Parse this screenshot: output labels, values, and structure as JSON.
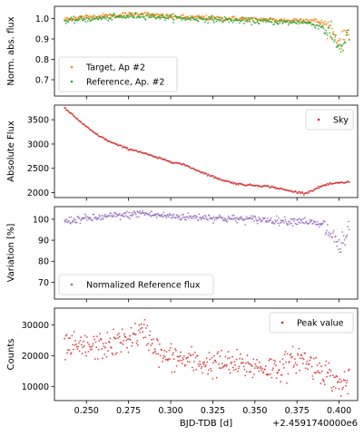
{
  "chart_data": [
    {
      "type": "scatter",
      "ylabel": "Norm. abs. flux",
      "ylim": [
        0.62,
        1.06
      ],
      "yticks": [
        0.7,
        0.8,
        0.9,
        1.0
      ],
      "ytick_labels": [
        "0.7",
        "0.8",
        "0.9",
        "1.0"
      ],
      "xlim": [
        0.231,
        0.411
      ],
      "legend_loc": "lower-left",
      "series": [
        {
          "name": "Target, Ap #2",
          "color": "#ff7f0e",
          "x": [
            0.237,
            0.245,
            0.255,
            0.265,
            0.275,
            0.283,
            0.29,
            0.3,
            0.31,
            0.32,
            0.33,
            0.34,
            0.35,
            0.36,
            0.37,
            0.378,
            0.385,
            0.39,
            0.394,
            0.398,
            0.401,
            0.404,
            0.406
          ],
          "y": [
            0.995,
            1.005,
            1.01,
            1.015,
            1.02,
            1.025,
            1.015,
            1.01,
            1.005,
            1.005,
            1.0,
            1.0,
            0.995,
            0.995,
            0.99,
            0.995,
            0.99,
            0.98,
            0.96,
            0.91,
            0.88,
            0.93,
            0.94
          ]
        },
        {
          "name": "Reference, Ap. #2",
          "color": "#2ca02c",
          "x": [
            0.237,
            0.245,
            0.255,
            0.265,
            0.275,
            0.283,
            0.29,
            0.3,
            0.31,
            0.32,
            0.33,
            0.34,
            0.35,
            0.36,
            0.37,
            0.378,
            0.385,
            0.39,
            0.394,
            0.398,
            0.401,
            0.404,
            0.406
          ],
          "y": [
            0.985,
            0.995,
            1.0,
            1.005,
            1.01,
            1.015,
            1.01,
            1.005,
            1.0,
            0.998,
            0.995,
            0.99,
            0.988,
            0.985,
            0.98,
            0.985,
            0.97,
            0.96,
            0.93,
            0.89,
            0.85,
            0.9,
            0.93
          ]
        }
      ]
    },
    {
      "type": "scatter",
      "ylabel": "Absolute Flux",
      "ylim": [
        1900,
        3800
      ],
      "yticks": [
        2000,
        2500,
        3000,
        3500
      ],
      "ytick_labels": [
        "2000",
        "2500",
        "3000",
        "3500"
      ],
      "xlim": [
        0.231,
        0.411
      ],
      "legend_loc": "upper-right",
      "series": [
        {
          "name": "Sky",
          "color": "#d62728",
          "x": [
            0.237,
            0.24,
            0.245,
            0.25,
            0.255,
            0.26,
            0.265,
            0.27,
            0.275,
            0.28,
            0.285,
            0.29,
            0.295,
            0.3,
            0.305,
            0.31,
            0.315,
            0.32,
            0.325,
            0.33,
            0.335,
            0.34,
            0.345,
            0.35,
            0.355,
            0.36,
            0.365,
            0.37,
            0.375,
            0.38,
            0.385,
            0.39,
            0.395,
            0.4,
            0.406
          ],
          "y": [
            3740,
            3650,
            3500,
            3350,
            3220,
            3120,
            3030,
            2960,
            2900,
            2860,
            2800,
            2740,
            2690,
            2640,
            2600,
            2550,
            2470,
            2400,
            2330,
            2270,
            2220,
            2180,
            2160,
            2150,
            2140,
            2120,
            2080,
            2040,
            2010,
            1990,
            2060,
            2140,
            2180,
            2200,
            2220
          ]
        }
      ]
    },
    {
      "type": "scatter",
      "ylabel": "Variation [%]",
      "ylim": [
        62,
        106
      ],
      "yticks": [
        70,
        80,
        90,
        100
      ],
      "ytick_labels": [
        "70",
        "80",
        "90",
        "100"
      ],
      "xlim": [
        0.231,
        0.411
      ],
      "legend_loc": "lower-left",
      "series": [
        {
          "name": "Normalized Reference flux",
          "color": "#9467bd",
          "x": [
            0.237,
            0.245,
            0.255,
            0.265,
            0.275,
            0.283,
            0.29,
            0.3,
            0.31,
            0.32,
            0.33,
            0.34,
            0.35,
            0.36,
            0.37,
            0.378,
            0.385,
            0.39,
            0.394,
            0.398,
            0.401,
            0.404,
            0.406
          ],
          "y": [
            99,
            100,
            100.5,
            101.5,
            102,
            103,
            102,
            101.5,
            101,
            101,
            100.5,
            100,
            100,
            99.5,
            99,
            99.5,
            98,
            97,
            94,
            90,
            86,
            91,
            94
          ]
        }
      ]
    },
    {
      "type": "scatter",
      "ylabel": "Counts",
      "xlabel": "BJD-TDB [d]",
      "x_offset_label": "+2.4591740000e6",
      "ylim": [
        5500,
        35500
      ],
      "yticks": [
        10000,
        20000,
        30000
      ],
      "ytick_labels": [
        "10000",
        "20000",
        "30000"
      ],
      "xlim": [
        0.231,
        0.411
      ],
      "xticks": [
        0.25,
        0.275,
        0.3,
        0.325,
        0.35,
        0.375,
        0.4
      ],
      "xtick_labels": [
        "0.250",
        "0.275",
        "0.300",
        "0.325",
        "0.350",
        "0.375",
        "0.400"
      ],
      "legend_loc": "upper-right",
      "series": [
        {
          "name": "Peak value",
          "color": "#d62728",
          "x": [
            0.237,
            0.245,
            0.255,
            0.265,
            0.275,
            0.28,
            0.285,
            0.29,
            0.295,
            0.3,
            0.31,
            0.32,
            0.33,
            0.34,
            0.35,
            0.36,
            0.365,
            0.37,
            0.375,
            0.38,
            0.385,
            0.39,
            0.395,
            0.4,
            0.406
          ],
          "y": [
            23000,
            22500,
            23000,
            23500,
            25500,
            27000,
            27500,
            24000,
            19500,
            19500,
            18500,
            17500,
            17500,
            17000,
            16500,
            16000,
            16500,
            17000,
            19500,
            18500,
            16500,
            15500,
            13500,
            10500,
            12000
          ]
        }
      ]
    }
  ]
}
